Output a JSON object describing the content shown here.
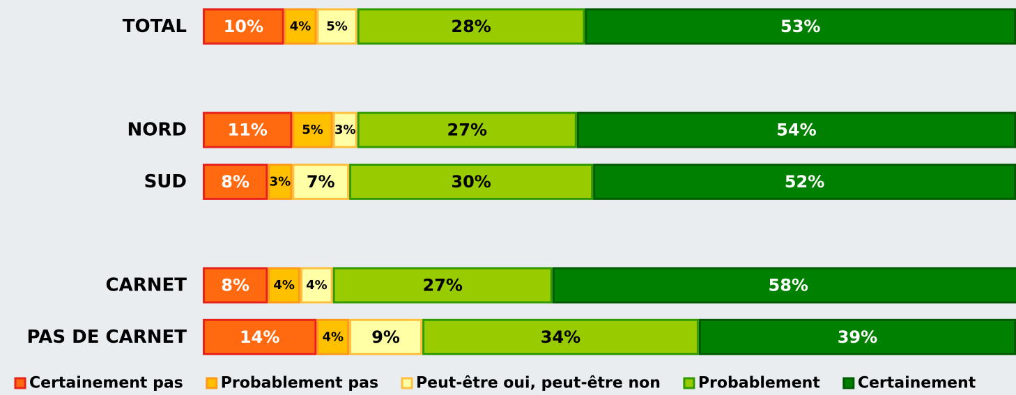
{
  "chart_data": {
    "type": "stacked_bar_horizontal",
    "categories": [
      "TOTAL",
      null,
      "NORD",
      "SUD",
      null,
      "CARNET",
      "PAS DE CARNET"
    ],
    "xlim": [
      0,
      100
    ],
    "legend": "bottom",
    "series": [
      {
        "name": "Certainement pas",
        "color": "#ff6a10",
        "edge_color": "#e8231b",
        "label_color": "#ffffff",
        "values": [
          10,
          null,
          11,
          8,
          null,
          8,
          14
        ],
        "value_labels": [
          "10%",
          null,
          "11%",
          "8%",
          null,
          "8%",
          "14%"
        ]
      },
      {
        "name": "Probablement pas",
        "color": "#ffc000",
        "edge_color": "#ff9a1a",
        "label_color": "#000000",
        "values": [
          4,
          null,
          5,
          3,
          null,
          4,
          4
        ],
        "value_labels": [
          "4%",
          null,
          "5%",
          "3%",
          null,
          "4%",
          "4%"
        ]
      },
      {
        "name": "Peut-être oui, peut-être non",
        "color": "#ffffa6",
        "edge_color": "#ffc040",
        "label_color": "#000000",
        "values": [
          5,
          null,
          3,
          7,
          null,
          4,
          9
        ],
        "value_labels": [
          "5%",
          null,
          "3%",
          "7%",
          null,
          "4%",
          "9%"
        ]
      },
      {
        "name": "Probablement",
        "color": "#99cc00",
        "edge_color": "#339900",
        "label_color": "#000000",
        "values": [
          28,
          null,
          27,
          30,
          null,
          27,
          34
        ],
        "value_labels": [
          "28%",
          null,
          "27%",
          "30%",
          null,
          "27%",
          "34%"
        ]
      },
      {
        "name": "Certainement",
        "color": "#008000",
        "edge_color": "#005a00",
        "label_color": "#ffffff",
        "values": [
          53,
          null,
          54,
          52,
          null,
          58,
          39
        ],
        "value_labels": [
          "53%",
          null,
          "54%",
          "52%",
          null,
          "58%",
          "39%"
        ]
      }
    ]
  }
}
